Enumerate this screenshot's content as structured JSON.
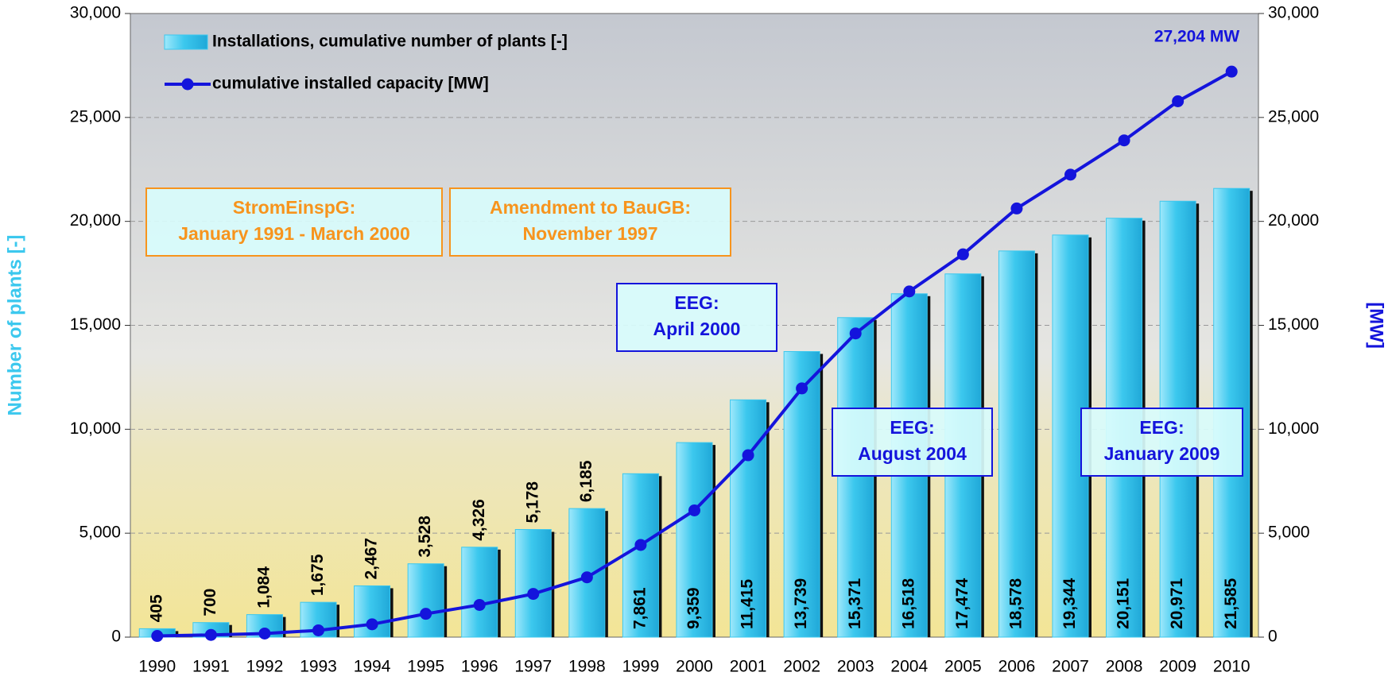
{
  "chart_data": {
    "type": "bar-line",
    "categories": [
      "1990",
      "1991",
      "1992",
      "1993",
      "1994",
      "1995",
      "1996",
      "1997",
      "1998",
      "1999",
      "2000",
      "2001",
      "2002",
      "2003",
      "2004",
      "2005",
      "2006",
      "2007",
      "2008",
      "2009",
      "2010"
    ],
    "series": [
      {
        "name": "Installations, cumulative number of plants [-]",
        "type": "bar",
        "color": "#3cc8ee",
        "values": [
          405,
          700,
          1084,
          1675,
          2467,
          3528,
          4326,
          5178,
          6185,
          7861,
          9359,
          11415,
          13739,
          15371,
          16518,
          17474,
          18578,
          19344,
          20151,
          20971,
          21585
        ],
        "value_labels": [
          "405",
          "700",
          "1,084",
          "1,675",
          "2,467",
          "3,528",
          "4,326",
          "5,178",
          "6,185",
          "7,861",
          "9,359",
          "11,415",
          "13,739",
          "15,371",
          "16,518",
          "17,474",
          "18,578",
          "19,344",
          "20,151",
          "20,971",
          "21,585"
        ]
      },
      {
        "name": "cumulative installed capacity [MW]",
        "type": "line",
        "axis": "y2",
        "color": "#1414dc",
        "values": [
          56,
          106,
          174,
          326,
          618,
          1121,
          1549,
          2080,
          2877,
          4435,
          6097,
          8750,
          11965,
          14609,
          16629,
          18415,
          20622,
          22247,
          23897,
          25777,
          27204
        ],
        "value_labels": [
          null,
          null,
          null,
          null,
          null,
          null,
          null,
          null,
          null,
          null,
          null,
          null,
          null,
          null,
          null,
          null,
          null,
          null,
          null,
          null,
          "27,204 MW"
        ]
      }
    ],
    "y_label": "Number of plants [-]",
    "y2_label": "[MW]",
    "ylim": [
      0,
      30000
    ],
    "yticks": [
      0,
      {
        "value": 5000,
        "label": "5,000"
      },
      {
        "value": 10000,
        "label": "10,000"
      },
      {
        "value": 15000,
        "label": "15,000"
      },
      {
        "value": 20000,
        "label": "20,000"
      },
      {
        "value": 25000,
        "label": "25,000"
      },
      {
        "value": 30000,
        "label": "30,000"
      }
    ],
    "y2lim": [
      0,
      30000
    ],
    "y2ticks": [
      0,
      {
        "value": 5000,
        "label": "5,000"
      },
      {
        "value": 10000,
        "label": "10,000"
      },
      {
        "value": 15000,
        "label": "15,000"
      },
      {
        "value": 20000,
        "label": "20,000"
      },
      {
        "value": 25000,
        "label": "25,000"
      },
      {
        "value": 30000,
        "label": "30,000"
      }
    ],
    "grid": true,
    "legend": "top-left",
    "annotations": [
      {
        "lines": [
          "StromEinspG:",
          "January 1991 - March 2000"
        ],
        "color": "#f7941d"
      },
      {
        "lines": [
          "Amendment to BauGB:",
          "November 1997"
        ],
        "color": "#f7941d"
      },
      {
        "lines": [
          "EEG:",
          "April 2000"
        ],
        "color": "#1414dc"
      },
      {
        "lines": [
          "EEG:",
          "August 2004"
        ],
        "color": "#1414dc"
      },
      {
        "lines": [
          "EEG:",
          "January 2009"
        ],
        "color": "#1414dc"
      }
    ]
  }
}
